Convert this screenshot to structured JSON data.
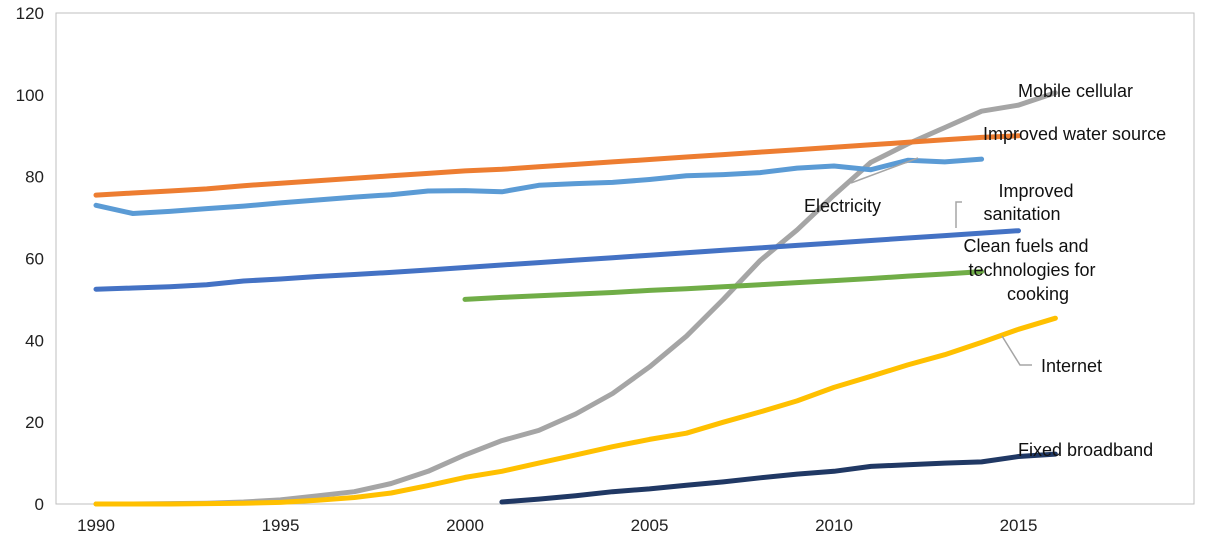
{
  "chart_data": {
    "type": "line",
    "title": "",
    "xlabel": "",
    "ylabel": "",
    "xlim": [
      1990,
      2022
    ],
    "ylim": [
      0,
      120
    ],
    "x_ticks": [
      1990,
      1995,
      2000,
      2005,
      2010,
      2015
    ],
    "y_ticks": [
      0,
      20,
      40,
      60,
      80,
      100,
      120
    ],
    "grid": false,
    "legend": "inline labels",
    "series": [
      {
        "name": "Mobile cellular",
        "color": "#a5a5a5",
        "x": [
          1990,
          1991,
          1992,
          1993,
          1994,
          1995,
          1996,
          1997,
          1998,
          1999,
          2000,
          2001,
          2002,
          2003,
          2004,
          2005,
          2006,
          2007,
          2008,
          2009,
          2010,
          2011,
          2012,
          2013,
          2014,
          2015,
          2016
        ],
        "values": [
          0,
          0,
          0.1,
          0.2,
          0.5,
          1,
          2,
          3,
          5,
          8,
          12,
          15.5,
          18,
          22,
          27,
          33.5,
          41,
          50,
          59.5,
          67,
          75.5,
          83.5,
          88,
          92,
          96,
          97.5,
          100.5
        ]
      },
      {
        "name": "Improved water source",
        "color": "#ed7d31",
        "x": [
          1990,
          1991,
          1992,
          1993,
          1994,
          1995,
          1996,
          1997,
          1998,
          1999,
          2000,
          2001,
          2002,
          2003,
          2004,
          2005,
          2006,
          2007,
          2008,
          2009,
          2010,
          2011,
          2012,
          2013,
          2014,
          2015
        ],
        "values": [
          75.5,
          76,
          76.5,
          77,
          77.8,
          78.4,
          79,
          79.6,
          80.2,
          80.8,
          81.4,
          81.8,
          82.4,
          83,
          83.6,
          84.2,
          84.8,
          85.4,
          86,
          86.6,
          87.2,
          87.8,
          88.4,
          89,
          89.6,
          90
        ]
      },
      {
        "name": "Electricity",
        "color": "#5b9bd5",
        "x": [
          1990,
          1991,
          1992,
          1993,
          1994,
          1995,
          1996,
          1997,
          1998,
          1999,
          2000,
          2001,
          2002,
          2003,
          2004,
          2005,
          2006,
          2007,
          2008,
          2009,
          2010,
          2011,
          2012,
          2013,
          2014
        ],
        "values": [
          73,
          71,
          71.5,
          72.2,
          72.8,
          73.6,
          74.3,
          75,
          75.6,
          76.5,
          76.6,
          76.3,
          77.9,
          78.3,
          78.6,
          79.3,
          80.2,
          80.5,
          81,
          82.1,
          82.6,
          81.7,
          84,
          83.6,
          84.3
        ]
      },
      {
        "name": "Improved sanitation",
        "color": "#4472c4",
        "x": [
          1990,
          1991,
          1992,
          1993,
          1994,
          1995,
          1996,
          1997,
          1998,
          1999,
          2000,
          2001,
          2002,
          2003,
          2004,
          2005,
          2006,
          2007,
          2008,
          2009,
          2010,
          2011,
          2012,
          2013,
          2014,
          2015
        ],
        "values": [
          52.5,
          52.8,
          53.1,
          53.6,
          54.5,
          55,
          55.6,
          56.1,
          56.6,
          57.2,
          57.8,
          58.4,
          59,
          59.6,
          60.2,
          60.8,
          61.4,
          62,
          62.6,
          63.2,
          63.8,
          64.4,
          65,
          65.6,
          66.2,
          66.8
        ]
      },
      {
        "name": "Clean fuels and technologies for cooking",
        "color": "#70ad47",
        "x": [
          2000,
          2001,
          2002,
          2003,
          2004,
          2005,
          2006,
          2007,
          2008,
          2009,
          2010,
          2011,
          2012,
          2013,
          2014
        ],
        "values": [
          50,
          50.5,
          50.9,
          51.3,
          51.7,
          52.2,
          52.6,
          53.1,
          53.6,
          54.1,
          54.6,
          55.1,
          55.7,
          56.2,
          56.8
        ]
      },
      {
        "name": "Internet",
        "color": "#ffc000",
        "x": [
          1990,
          1991,
          1992,
          1993,
          1994,
          1995,
          1996,
          1997,
          1998,
          1999,
          2000,
          2001,
          2002,
          2003,
          2004,
          2005,
          2006,
          2007,
          2008,
          2009,
          2010,
          2011,
          2012,
          2013,
          2014,
          2015,
          2016
        ],
        "values": [
          0,
          0,
          0,
          0.1,
          0.2,
          0.4,
          0.9,
          1.6,
          2.7,
          4.5,
          6.5,
          8,
          10,
          12,
          14,
          15.8,
          17.3,
          20,
          22.5,
          25.2,
          28.5,
          31.2,
          34,
          36.5,
          39.5,
          42.7,
          45.4
        ]
      },
      {
        "name": "Fixed broadband",
        "color": "#203864",
        "x": [
          2001,
          2002,
          2003,
          2004,
          2005,
          2006,
          2007,
          2008,
          2009,
          2010,
          2011,
          2012,
          2013,
          2014,
          2015,
          2016
        ],
        "values": [
          0.5,
          1.2,
          2,
          3,
          3.7,
          4.6,
          5.4,
          6.4,
          7.3,
          8,
          9.2,
          9.6,
          10,
          10.3,
          11.6,
          12.2
        ]
      }
    ]
  },
  "labels": {
    "mobile_cellular": "Mobile cellular",
    "improved_water_source": "Improved water source",
    "electricity": "Electricity",
    "improved_sanitation_line1": "Improved",
    "improved_sanitation_line2": "sanitation",
    "clean_fuels_line1": "Clean fuels and",
    "clean_fuels_line2": "technologies for",
    "clean_fuels_line3": "cooking",
    "internet": "Internet",
    "fixed_broadband": "Fixed broadband"
  }
}
